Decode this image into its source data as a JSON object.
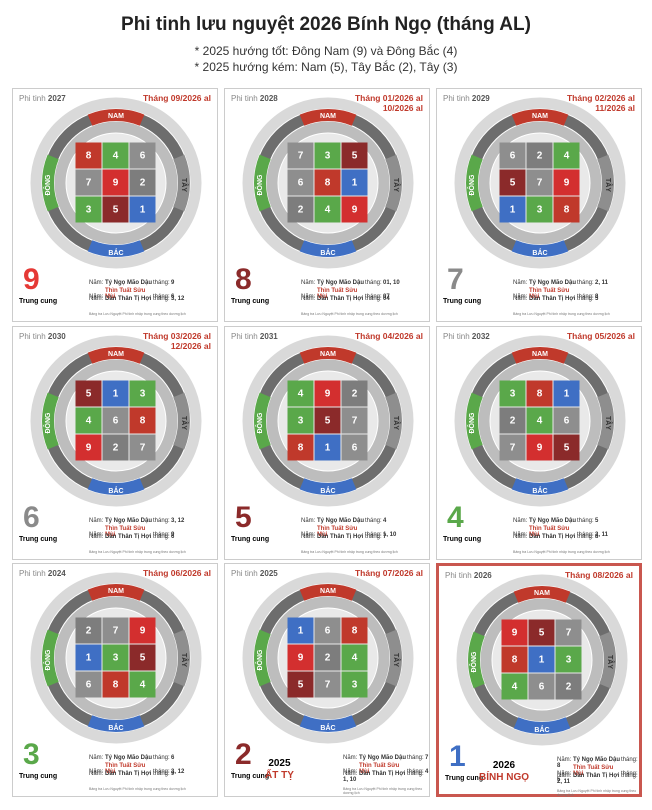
{
  "header": {
    "title": "Phi tinh lưu nguyệt 2026 Bính Ngọ (tháng AL)",
    "notes": [
      "* 2025 hướng tốt: Đông Nam (9) và  Đông Bắc (4)",
      "* 2025 hướng kém: Nam (5), Tây Bắc (2), Tây (3)"
    ]
  },
  "compass_labels": {
    "south": "NAM",
    "north": "BẮC",
    "east": "ĐÔNG",
    "west": "TÂY"
  },
  "star_colors": {
    "1": "#3f6fc4",
    "2": "#7d7d7d",
    "3": "#5aa84a",
    "4": "#5aa84a",
    "5": "#8b2a2a",
    "6": "#8e8e8e",
    "7": "#8e8e8e",
    "8": "#c0392b",
    "9": "#d32f2f"
  },
  "panels": [
    {
      "year_label": "Phi tinh",
      "year": "2027",
      "month": [
        "Tháng 09/2026 al"
      ],
      "center": 9,
      "center_color": "#e53935",
      "center_label": "Trung cung",
      "grid": [
        [
          8,
          4,
          6
        ],
        [
          7,
          9,
          2
        ],
        [
          3,
          5,
          1
        ]
      ],
      "rows": [
        [
          "Năm:",
          "Tý Ngọ Mão Dậu",
          "tháng:",
          "9"
        ],
        [
          "Năm:",
          "Thìn Tuất Sửu Mùi",
          "tháng:",
          "6"
        ],
        [
          "Năm:",
          "Dần Thân Tị Hợi",
          "tháng:",
          "3, 12"
        ]
      ],
      "note": "Bảng tra Lưu Nguyệt Phi tinh nhập trung cung theo dương lịch"
    },
    {
      "year_label": "Phi tinh",
      "year": "2028",
      "month": [
        "Tháng 01/2026 al",
        "10/2026 al"
      ],
      "center": 8,
      "center_color": "#8b2a2a",
      "center_label": "Trung cung",
      "grid": [
        [
          7,
          3,
          5
        ],
        [
          6,
          8,
          1
        ],
        [
          2,
          4,
          9
        ]
      ],
      "rows": [
        [
          "Năm:",
          "Tý Ngọ Mão Dậu",
          "tháng:",
          "01, 10"
        ],
        [
          "Năm:",
          "Thìn Tuất Sửu Mùi",
          "tháng:",
          "07"
        ],
        [
          "Năm:",
          "Dần Thân Tị Hợi",
          "tháng:",
          "04"
        ]
      ],
      "note": "Bảng tra Lưu Nguyệt Phi tinh nhập trung cung theo dương lịch"
    },
    {
      "year_label": "Phi tinh",
      "year": "2029",
      "month": [
        "Tháng 02/2026 al",
        "11/2026 al"
      ],
      "center": 7,
      "center_color": "#8a8a8a",
      "center_label": "Trung cung",
      "grid": [
        [
          6,
          2,
          4
        ],
        [
          5,
          7,
          9
        ],
        [
          1,
          3,
          8
        ]
      ],
      "rows": [
        [
          "Năm:",
          "Tý Ngọ Mão Dậu",
          "tháng:",
          "2, 11"
        ],
        [
          "Năm:",
          "Thìn Tuất Sửu Mùi",
          "tháng:",
          "8"
        ],
        [
          "Năm:",
          "Dần Thân Tị Hợi",
          "tháng:",
          "5"
        ]
      ],
      "note": "Bảng tra Lưu Nguyệt Phi tinh nhập trung cung theo dương lịch"
    },
    {
      "year_label": "Phi tinh",
      "year": "2030",
      "month": [
        "Tháng 03/2026 al",
        "12/2026 al"
      ],
      "center": 6,
      "center_color": "#8a8a8a",
      "center_label": "Trung cung",
      "grid": [
        [
          5,
          1,
          3
        ],
        [
          4,
          6,
          8
        ],
        [
          9,
          2,
          7
        ]
      ],
      "rows": [
        [
          "Năm:",
          "Tý Ngọ Mão Dậu",
          "tháng:",
          "3, 12"
        ],
        [
          "Năm:",
          "Thìn Tuất Sửu Mùi",
          "tháng:",
          "9"
        ],
        [
          "Năm:",
          "Dần Thân Tị Hợi",
          "tháng:",
          "6"
        ]
      ],
      "note": "Bảng tra Lưu Nguyệt Phi tinh nhập trung cung theo dương lịch"
    },
    {
      "year_label": "Phi tinh",
      "year": "2031",
      "month": [
        "Tháng 04/2026 al"
      ],
      "center": 5,
      "center_color": "#8b2a2a",
      "center_label": "Trung cung",
      "grid": [
        [
          4,
          9,
          2
        ],
        [
          3,
          5,
          7
        ],
        [
          8,
          1,
          6
        ]
      ],
      "rows": [
        [
          "Năm:",
          "Tý Ngọ Mão Dậu",
          "tháng:",
          "4"
        ],
        [
          "Năm:",
          "Thìn Tuất Sửu Mùi",
          "tháng:",
          "1, 10"
        ],
        [
          "Năm:",
          "Dần Thân Tị Hợi",
          "tháng:",
          "7"
        ]
      ],
      "note": "Bảng tra Lưu Nguyệt Phi tinh nhập trung cung theo dương lịch"
    },
    {
      "year_label": "Phi tinh",
      "year": "2032",
      "month": [
        "Tháng 05/2026 al"
      ],
      "center": 4,
      "center_color": "#5aa84a",
      "center_label": "Trung cung",
      "grid": [
        [
          3,
          8,
          1
        ],
        [
          2,
          4,
          6
        ],
        [
          7,
          9,
          5
        ]
      ],
      "rows": [
        [
          "Năm:",
          "Tý Ngọ Mão Dậu",
          "tháng:",
          "5"
        ],
        [
          "Năm:",
          "Thìn Tuất Sửu Mùi",
          "tháng:",
          "2, 11"
        ],
        [
          "Năm:",
          "Dần Thân Tị Hợi",
          "tháng:",
          "8"
        ]
      ],
      "note": "Bảng tra Lưu Nguyệt Phi tinh nhập trung cung theo dương lịch"
    },
    {
      "year_label": "Phi tinh",
      "year": "2024",
      "month": [
        "Tháng 06/2026 al"
      ],
      "center": 3,
      "center_color": "#5aa84a",
      "center_label": "Trung cung",
      "grid": [
        [
          2,
          7,
          9
        ],
        [
          1,
          3,
          5
        ],
        [
          6,
          8,
          4
        ]
      ],
      "rows": [
        [
          "Năm:",
          "Tý Ngọ Mão Dậu",
          "tháng:",
          "6"
        ],
        [
          "Năm:",
          "Thìn Tuất Sửu Mùi",
          "tháng:",
          "3, 12"
        ],
        [
          "Năm:",
          "Dần Thân Tị Hợi",
          "tháng:",
          "9"
        ]
      ],
      "note": "Bảng tra Lưu Nguyệt Phi tinh nhập trung cung theo dương lịch"
    },
    {
      "year_label": "Phi tinh",
      "year": "2025",
      "month": [
        "Tháng 07/2026 al"
      ],
      "center": 2,
      "center_color": "#8b2a2a",
      "center_label": "Trung cung",
      "badge": [
        "2025",
        "ẤT TỴ"
      ],
      "grid": [
        [
          1,
          6,
          8
        ],
        [
          9,
          2,
          4
        ],
        [
          5,
          7,
          3
        ]
      ],
      "rows": [
        [
          "Năm:",
          "Tý Ngọ Mão Dậu",
          "tháng:",
          "7"
        ],
        [
          "Năm:",
          "Thìn Tuất Sửu Mùi",
          "tháng:",
          "4"
        ],
        [
          "Năm:",
          "Dần Thân Tị Hợi",
          "tháng:",
          "1, 10"
        ]
      ],
      "note": "Bảng tra Lưu Nguyệt Phi tinh nhập trung cung theo dương lịch"
    },
    {
      "year_label": "Phi tinh",
      "year": "2026",
      "month": [
        "Tháng 08/2026 al"
      ],
      "center": 1,
      "center_color": "#3f6fc4",
      "center_label": "Trung cung",
      "badge": [
        "2026",
        "BÍNH NGỌ"
      ],
      "highlight": true,
      "grid": [
        [
          9,
          5,
          7
        ],
        [
          8,
          1,
          3
        ],
        [
          4,
          6,
          2
        ]
      ],
      "rows": [
        [
          "Năm:",
          "Tý Ngọ Mão Dậu",
          "tháng:",
          "8"
        ],
        [
          "Năm:",
          "Thìn Tuất Sửu Mùi",
          "tháng:",
          "5"
        ],
        [
          "Năm:",
          "Dần Thân Tị Hợi",
          "tháng:",
          "2, 11"
        ]
      ],
      "note": "Bảng tra Lưu Nguyệt Phi tinh nhập trung cung theo dương lịch"
    }
  ]
}
